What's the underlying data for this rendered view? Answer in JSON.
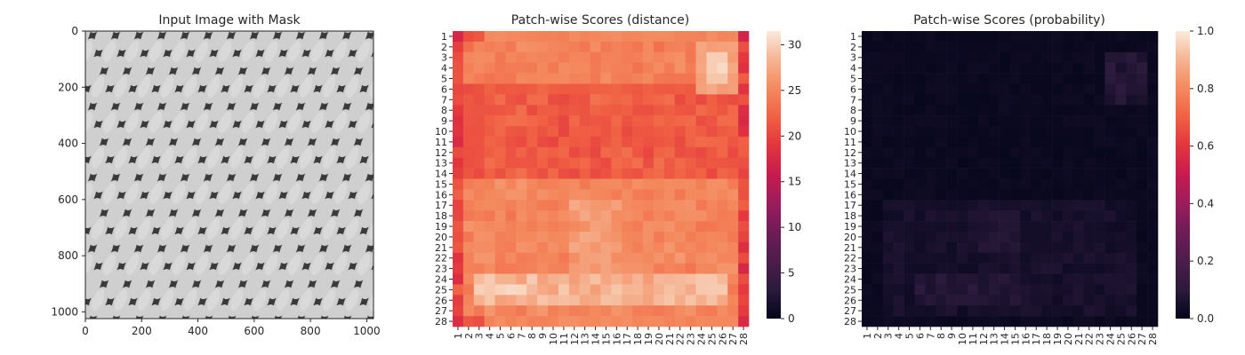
{
  "chart_data": [
    {
      "type": "image",
      "title": "Input Image with Mask",
      "xlim": [
        0,
        1024
      ],
      "ylim": [
        1024,
        0
      ],
      "xticks": [
        0,
        200,
        400,
        600,
        800,
        1000
      ],
      "yticks": [
        0,
        200,
        400,
        600,
        800,
        1000
      ],
      "image_description_colors": {
        "light": "#d4d4d4",
        "dark": "#2a2a2a"
      }
    },
    {
      "type": "heatmap",
      "title": "Patch-wise Scores (distance)",
      "x": [
        1,
        2,
        3,
        4,
        5,
        6,
        7,
        8,
        9,
        10,
        11,
        12,
        13,
        14,
        15,
        16,
        17,
        18,
        19,
        20,
        21,
        22,
        23,
        24,
        25,
        26,
        27,
        28
      ],
      "y": [
        1,
        2,
        3,
        4,
        5,
        6,
        7,
        8,
        9,
        10,
        11,
        12,
        13,
        14,
        15,
        16,
        17,
        18,
        19,
        20,
        21,
        22,
        23,
        24,
        25,
        26,
        27,
        28
      ],
      "colorbar_ticks": [
        0,
        5,
        10,
        15,
        20,
        25,
        30
      ],
      "vmin": 0,
      "vmax": 31.5,
      "colormap": "rocket",
      "value_model": "approximate: ~22 in interior, ~26-30 at left/right borders and bright band near rows 24-26, darker (~18) cells on left column and right column"
    },
    {
      "type": "heatmap",
      "title": "Patch-wise Scores (probability)",
      "x": [
        1,
        2,
        3,
        4,
        5,
        6,
        7,
        8,
        9,
        10,
        11,
        12,
        13,
        14,
        15,
        16,
        17,
        18,
        19,
        20,
        21,
        22,
        23,
        24,
        25,
        26,
        27,
        28
      ],
      "y": [
        1,
        2,
        3,
        4,
        5,
        6,
        7,
        8,
        9,
        10,
        11,
        12,
        13,
        14,
        15,
        16,
        17,
        18,
        19,
        20,
        21,
        22,
        23,
        24,
        25,
        26,
        27,
        28
      ],
      "colorbar_ticks": [
        "0.0",
        "0.2",
        "0.4",
        "0.6",
        "0.8",
        "1.0"
      ],
      "vmin": 0,
      "vmax": 1,
      "colormap": "rocket",
      "value_model": "approximate: near 0 everywhere, up to ~0.1 near rows 3-6 cols 24-26 and along lower band rows 17-26"
    }
  ]
}
